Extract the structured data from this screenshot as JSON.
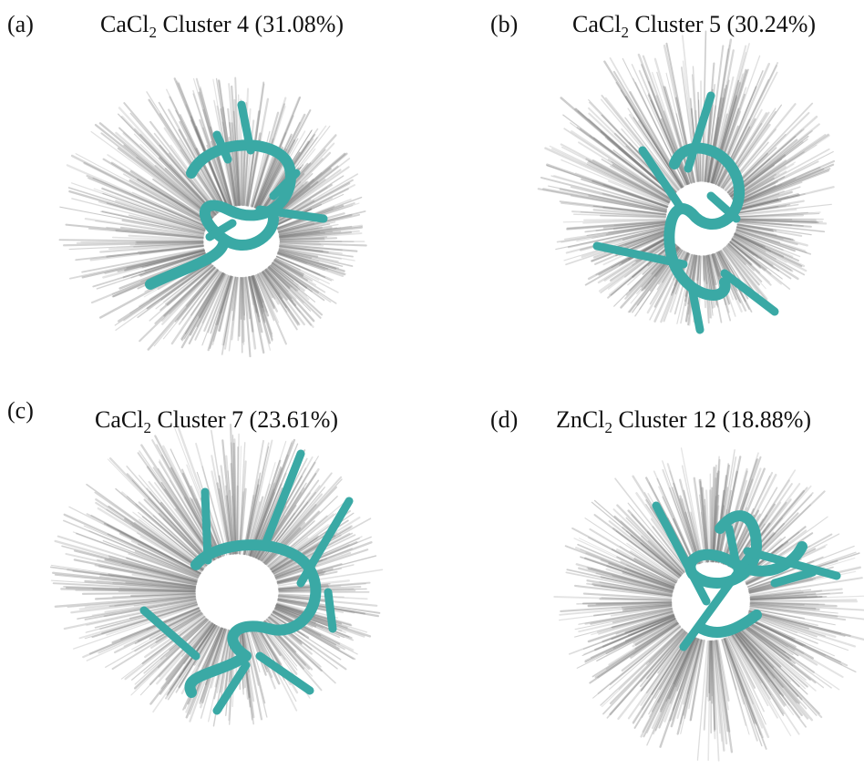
{
  "panels": [
    {
      "label": "(a)",
      "title_prefix": "CaCl",
      "title_subscript": "2",
      "title_suffix": "Cluster 4 (31.08%)"
    },
    {
      "label": "(b)",
      "title_prefix": "CaCl",
      "title_subscript": "2",
      "title_suffix": "Cluster 5 (30.24%)"
    },
    {
      "label": "(c)",
      "title_prefix": "CaCl",
      "title_subscript": "2",
      "title_suffix": "Cluster 7 (23.61%)"
    },
    {
      "label": "(d)",
      "title_prefix": "ZnCl",
      "title_subscript": "2",
      "title_suffix": "Cluster 12 (18.88%)"
    }
  ]
}
